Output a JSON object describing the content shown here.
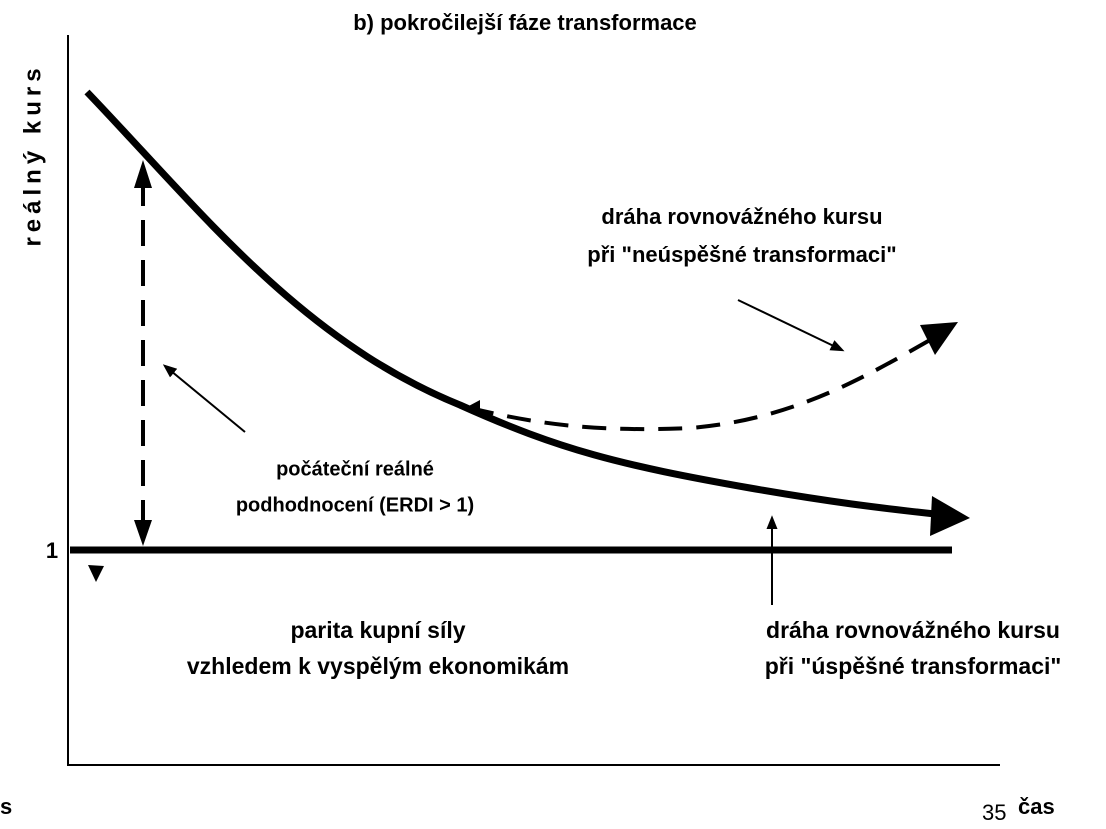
{
  "title": "b) pokročilejší fáze transformace",
  "y_axis_label": "reálný kurs",
  "x_axis_label": "čas",
  "baseline_label": "1",
  "annotations": [
    {
      "lines": [
        "dráha rovnovážného kursu",
        "při \"neúspěšné transformaci\""
      ]
    },
    {
      "lines": [
        "počáteční reálné",
        "podhodnocení (ERDI > 1)"
      ]
    },
    {
      "lines": [
        "parita kupní síly",
        "vzhledem k vyspělým ekonomikám"
      ]
    },
    {
      "lines": [
        "dráha rovnovážného kursu",
        "při \"úspěšné transformaci\""
      ]
    }
  ],
  "page_number": "35",
  "fragment": "s"
}
